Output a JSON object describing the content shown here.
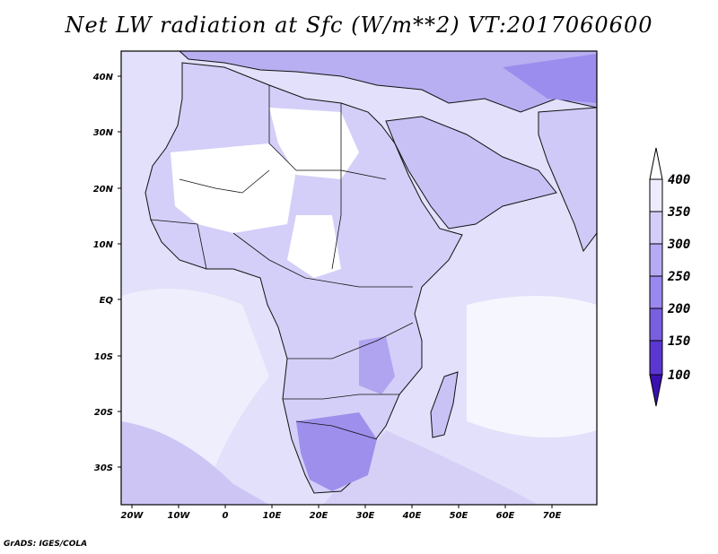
{
  "title": "Net LW radiation at Sfc (W/m**2) VT:2017060600",
  "credit": "GrADS: IGES/COLA",
  "map": {
    "lon_range": [
      -22,
      80
    ],
    "lat_range": [
      -37,
      45
    ],
    "x_ticks": [
      "20W",
      "10W",
      "0",
      "10E",
      "20E",
      "30E",
      "40E",
      "50E",
      "60E",
      "70E"
    ],
    "y_ticks": [
      "40N",
      "30N",
      "20N",
      "10N",
      "EQ",
      "10S",
      "20S",
      "30S"
    ]
  },
  "colorbar": {
    "levels": [
      "100",
      "150",
      "200",
      "250",
      "300",
      "350",
      "400"
    ],
    "colors": [
      "#3a10b0",
      "#5a37d0",
      "#7a5ee0",
      "#9a88ee",
      "#b7aaf4",
      "#d3cdfa",
      "#ececfd"
    ]
  },
  "palette": {
    "ocean": "#dcdcf8",
    "land_cool": "#c6c0f5",
    "land_warm": "#ffffff",
    "cold_spot": "#a99cf0",
    "deep_spot": "#8c7be8"
  }
}
